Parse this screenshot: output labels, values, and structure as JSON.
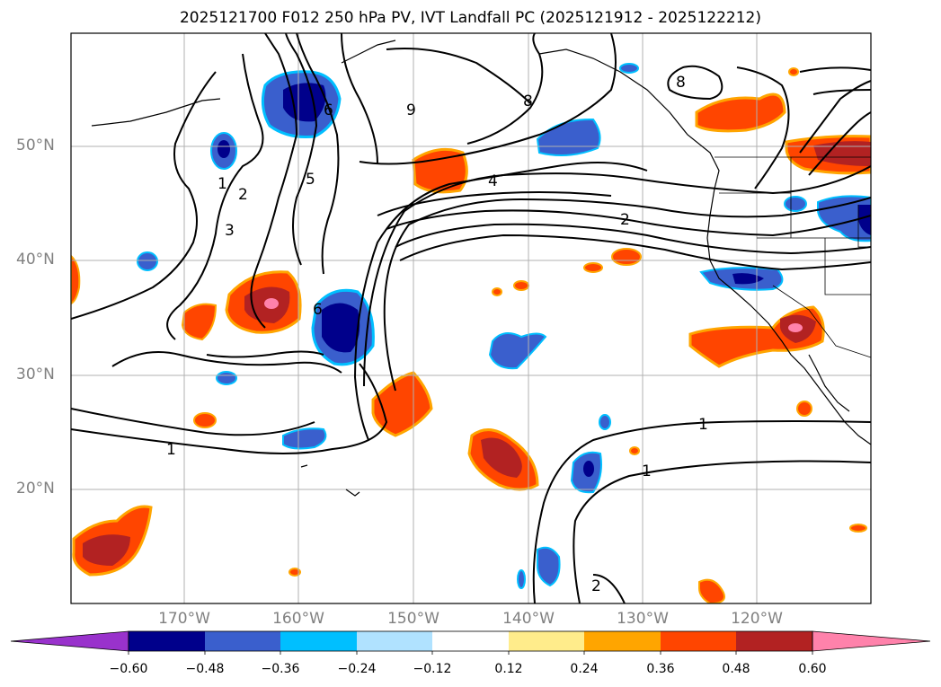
{
  "title": "2025121700 F012 250 hPa PV, IVT Landfall PC (2025121912 - 2025122212)",
  "lat_labels": [
    "50°N",
    "40°N",
    "30°N",
    "20°N"
  ],
  "lon_labels": [
    "170°W",
    "160°W",
    "150°W",
    "140°W",
    "130°W",
    "120°W"
  ],
  "colorbar": {
    "ticks": [
      "−0.60",
      "−0.48",
      "−0.36",
      "−0.24",
      "−0.12",
      "0.12",
      "0.24",
      "0.36",
      "0.48",
      "0.60"
    ],
    "colors": [
      "#9932cc",
      "#00008b",
      "#3a5fcd",
      "#00bfff",
      "#b0e2ff",
      "#ffffff",
      "#ffec8b",
      "#ffa500",
      "#ff4500",
      "#b22222",
      "#ff82ab",
      "#ff82ab"
    ]
  },
  "contour_labels": [
    "1",
    "2",
    "3",
    "5",
    "6",
    "9",
    "8",
    "8",
    "4",
    "2",
    "6",
    "1",
    "1",
    "1",
    "2"
  ],
  "chart_data": {
    "type": "heatmap",
    "title": "2025121700 F012 250 hPa PV, IVT Landfall PC (2025121912 - 2025122212)",
    "lat_range": [
      10,
      60
    ],
    "lon_range": [
      -180,
      -110
    ],
    "contour_levels": [
      1,
      2,
      3,
      4,
      5,
      6,
      8,
      9
    ],
    "colorbar_levels": [
      -0.6,
      -0.48,
      -0.36,
      -0.24,
      -0.12,
      0.12,
      0.24,
      0.36,
      0.48,
      0.6
    ]
  }
}
